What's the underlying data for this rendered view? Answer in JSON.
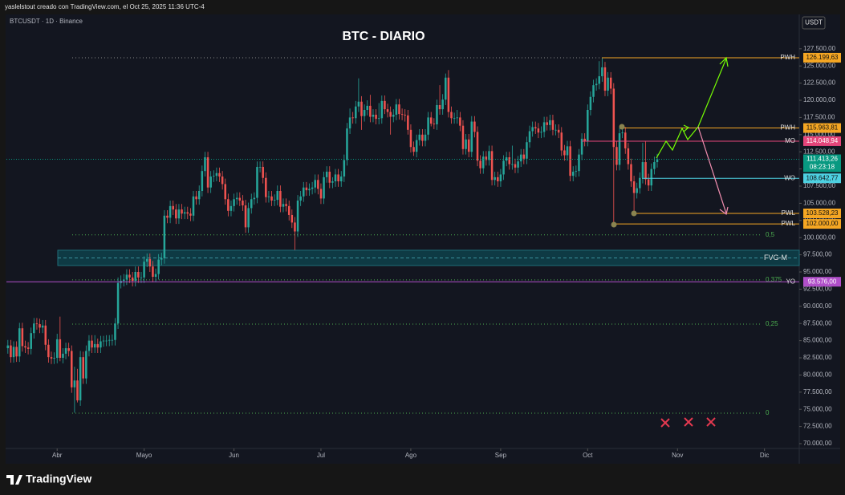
{
  "header": {
    "credit": "yaslelstout creado con TradingView.com, el Oct 25, 2025 11:36 UTC-4",
    "brand": "TradingView"
  },
  "chart_data": {
    "type": "candlestick",
    "title": "BTC - DIARIO",
    "symbol": "BTCUSDT · 1D · Binance",
    "currency": "USDT",
    "up_color": "#26a69a",
    "down_color": "#ef5350",
    "grid": false,
    "ylim": [
      67430,
      131100
    ],
    "xlim": [
      -0.5,
      273
    ],
    "yticks": [
      {
        "value": 127500,
        "label": "127.500,00"
      },
      {
        "value": 125000,
        "label": "125.000,00"
      },
      {
        "value": 122500,
        "label": "122.500,00"
      },
      {
        "value": 120000,
        "label": "120.000,00"
      },
      {
        "value": 117500,
        "label": "117.500,00"
      },
      {
        "value": 115000,
        "label": "115.000,00"
      },
      {
        "value": 112500,
        "label": "112.500,00"
      },
      {
        "value": 110000,
        "label": "110.000,00"
      },
      {
        "value": 107500,
        "label": "107.500,00"
      },
      {
        "value": 105000,
        "label": "105.000,00"
      },
      {
        "value": 102500,
        "label": "102.500,00"
      },
      {
        "value": 100000,
        "label": "100.000,00"
      },
      {
        "value": 97500,
        "label": "97.500,00"
      },
      {
        "value": 95000,
        "label": "95.000,00"
      },
      {
        "value": 92500,
        "label": "92.500,00"
      },
      {
        "value": 90000,
        "label": "90.000,00"
      },
      {
        "value": 87500,
        "label": "87.500,00"
      },
      {
        "value": 85000,
        "label": "85.000,00"
      },
      {
        "value": 82500,
        "label": "82.500,00"
      },
      {
        "value": 80000,
        "label": "80.000,00"
      },
      {
        "value": 77500,
        "label": "77.500,00"
      },
      {
        "value": 75000,
        "label": "75.000,00"
      },
      {
        "value": 72500,
        "label": "72.500,00"
      },
      {
        "value": 70000,
        "label": "70.000,00"
      }
    ],
    "xticks": [
      {
        "value": 17,
        "label": "Abr"
      },
      {
        "value": 47,
        "label": "Mayo"
      },
      {
        "value": 78,
        "label": "Jun"
      },
      {
        "value": 108,
        "label": "Jul"
      },
      {
        "value": 139,
        "label": "Ago"
      },
      {
        "value": 170,
        "label": "Sep"
      },
      {
        "value": 200,
        "label": "Oct"
      },
      {
        "value": 231,
        "label": "Nov"
      },
      {
        "value": 261,
        "label": "Dic"
      }
    ],
    "open": [
      83900,
      84300,
      82600,
      84100,
      82700,
      86800,
      84200,
      84000,
      83800,
      86100,
      87500,
      87400,
      86900,
      87200,
      84400,
      82600,
      82400,
      82500,
      85200,
      82500,
      83100,
      83900,
      83500,
      78200,
      79200,
      76300,
      82600,
      79500,
      83500,
      85000,
      84000,
      84500,
      84000,
      84900,
      85000,
      85000,
      85100,
      85100,
      87500,
      93400,
      93700,
      93900,
      94600,
      94200,
      93700,
      95000,
      94200,
      94200,
      96500,
      96900,
      95800,
      94300,
      94700,
      96800,
      97000,
      103200,
      102900,
      104600,
      104100,
      102800,
      104100,
      103500,
      103700,
      103500,
      103200,
      106000,
      105600,
      106800,
      109700,
      111700,
      107300,
      108900,
      109000,
      109400,
      108900,
      107800,
      105600,
      103900,
      104600,
      105600,
      105800,
      105400,
      104700,
      101500,
      104300,
      105600,
      105800,
      110300,
      110300,
      108700,
      105900,
      106000,
      105400,
      105500,
      106800,
      104500,
      104900,
      104600,
      103300,
      102200,
      100900,
      105400,
      106000,
      107300,
      106900,
      107100,
      107300,
      108400,
      107100,
      105700,
      108800,
      109600,
      108000,
      108200,
      109200,
      108200,
      108900,
      111300,
      115900,
      117500,
      117400,
      119100,
      119800,
      117700,
      118600,
      119200,
      117600,
      117900,
      117300,
      117400,
      119900,
      118700,
      118300,
      117600,
      117900,
      119400,
      118000,
      117900,
      117800,
      115700,
      113200,
      112500,
      114200,
      115000,
      114100,
      115000,
      117500,
      116600,
      116500,
      119300,
      118700,
      120100,
      123300,
      118300,
      117400,
      117400,
      117500,
      116300,
      112900,
      114300,
      112500,
      116900,
      115400,
      111200,
      110100,
      111800,
      111300,
      112600,
      108400,
      108800,
      108200,
      109200,
      111200,
      111700,
      110700,
      110700,
      110200,
      111100,
      112100,
      111500,
      113900,
      115500,
      116100,
      115900,
      115300,
      115400,
      116800,
      116400,
      117100,
      115700,
      115700,
      115300,
      112700,
      112000,
      113300,
      109000,
      109600,
      109700,
      112100,
      114400,
      114100,
      118600,
      120500,
      122200,
      122400,
      123500,
      124800,
      121400,
      123300,
      121700,
      113200,
      110600,
      115200,
      115300,
      113000,
      110700,
      108200,
      106500,
      107200,
      108700,
      111000,
      108500,
      107600,
      110000,
      111000
    ],
    "high": [
      85100,
      85100,
      84900,
      84900,
      87600,
      87600,
      85000,
      84800,
      86900,
      88300,
      88300,
      88200,
      88000,
      88000,
      85200,
      83400,
      83300,
      86000,
      88500,
      83900,
      84700,
      84700,
      84300,
      81200,
      80900,
      83500,
      83400,
      84300,
      85800,
      85800,
      85800,
      85300,
      85700,
      85700,
      85800,
      85800,
      85900,
      88300,
      94200,
      94500,
      94700,
      95400,
      95400,
      95000,
      95800,
      95800,
      95000,
      97300,
      97700,
      97700,
      96600,
      95500,
      97600,
      97800,
      104000,
      104000,
      105400,
      105400,
      104900,
      104900,
      104900,
      104500,
      104500,
      104300,
      106800,
      106800,
      107600,
      110500,
      112500,
      112500,
      109700,
      109800,
      110200,
      110200,
      109700,
      108600,
      106400,
      105400,
      106400,
      106600,
      106600,
      106200,
      105500,
      105100,
      106400,
      106600,
      111100,
      111100,
      111100,
      109500,
      106800,
      106800,
      106300,
      107600,
      107600,
      105700,
      105700,
      105400,
      104100,
      103000,
      106200,
      106800,
      108100,
      108100,
      107900,
      108100,
      109200,
      109200,
      107900,
      109600,
      110400,
      110400,
      108800,
      110000,
      110000,
      109700,
      112100,
      116700,
      118800,
      118300,
      119900,
      123200,
      120600,
      119400,
      120000,
      120800,
      118700,
      118700,
      119600,
      120700,
      120700,
      119500,
      119100,
      118700,
      120200,
      120200,
      118800,
      118700,
      118600,
      116500,
      114000,
      115000,
      115800,
      115800,
      115800,
      118300,
      118300,
      117400,
      120100,
      122200,
      120900,
      123900,
      124400,
      119100,
      118200,
      118600,
      118300,
      117100,
      115100,
      115100,
      117700,
      117700,
      116200,
      112000,
      112600,
      112600,
      113400,
      113400,
      109600,
      109600,
      110000,
      112000,
      112500,
      112500,
      113400,
      111500,
      111900,
      112900,
      112900,
      114700,
      116300,
      116900,
      116900,
      116700,
      116200,
      117600,
      117600,
      117900,
      117900,
      116500,
      116500,
      116100,
      113500,
      114100,
      114100,
      110400,
      110500,
      112900,
      115200,
      115200,
      119400,
      121300,
      123000,
      123200,
      125700,
      126200,
      125600,
      124100,
      124100,
      122500,
      114000,
      116000,
      116100,
      116100,
      113800,
      111500,
      109000,
      108000,
      109500,
      113800,
      114000,
      109300,
      110800,
      111800,
      112200
    ],
    "low": [
      83100,
      81800,
      81800,
      81900,
      81900,
      83400,
      83200,
      83000,
      83000,
      85300,
      86600,
      86100,
      86100,
      83600,
      81800,
      81600,
      81600,
      81700,
      82000,
      81700,
      82300,
      82700,
      77400,
      74500,
      76000,
      75500,
      78700,
      78700,
      82700,
      83200,
      83200,
      83200,
      83200,
      84100,
      84200,
      84200,
      84300,
      84300,
      86700,
      92600,
      92900,
      93100,
      93400,
      92900,
      92900,
      93400,
      93400,
      93400,
      95700,
      95000,
      93500,
      93500,
      93900,
      96000,
      96200,
      102100,
      102100,
      103300,
      102000,
      102000,
      102700,
      102700,
      102700,
      102400,
      102400,
      104800,
      104800,
      106000,
      108900,
      106500,
      106500,
      108100,
      108200,
      108100,
      107000,
      104800,
      103100,
      103100,
      103800,
      104800,
      104600,
      103900,
      100700,
      100700,
      103500,
      104800,
      105000,
      109500,
      107900,
      105100,
      105100,
      104600,
      104600,
      104700,
      103700,
      103700,
      103800,
      102500,
      101400,
      98200,
      100100,
      104600,
      105200,
      106100,
      106100,
      106300,
      106500,
      106300,
      104900,
      104900,
      108000,
      107200,
      107200,
      107400,
      107400,
      107400,
      108100,
      110500,
      115100,
      116600,
      116600,
      118300,
      115700,
      116900,
      117800,
      116800,
      116800,
      116500,
      116500,
      116600,
      118000,
      117500,
      115000,
      116800,
      117100,
      117200,
      117100,
      116900,
      115000,
      112400,
      111900,
      111700,
      113400,
      113300,
      113300,
      114200,
      116200,
      115800,
      115700,
      117900,
      117900,
      119300,
      117500,
      116600,
      116600,
      116600,
      115500,
      112100,
      112100,
      111700,
      111700,
      114600,
      110400,
      109300,
      109300,
      110500,
      110500,
      107600,
      107600,
      107400,
      107400,
      108400,
      110400,
      109900,
      109900,
      109400,
      109400,
      110300,
      110700,
      110700,
      113100,
      114700,
      115100,
      114500,
      114500,
      114600,
      115600,
      115600,
      114900,
      114900,
      114500,
      111900,
      111200,
      111200,
      108200,
      108200,
      108800,
      108900,
      111300,
      113300,
      113300,
      117800,
      119700,
      121400,
      121600,
      122700,
      120600,
      120600,
      120900,
      102000,
      109800,
      109800,
      114500,
      112200,
      109900,
      107400,
      103500,
      105700,
      106400,
      107900,
      107700,
      106800,
      106800,
      109200,
      110200
    ],
    "close": [
      84300,
      82600,
      84100,
      82700,
      86800,
      84200,
      84000,
      83800,
      86100,
      87500,
      87400,
      86900,
      87200,
      84400,
      82600,
      82400,
      82500,
      85200,
      82500,
      83100,
      83900,
      83500,
      78200,
      79200,
      76300,
      82600,
      79500,
      83500,
      85000,
      84000,
      84500,
      84000,
      84900,
      85000,
      85000,
      85100,
      85100,
      87500,
      93400,
      93700,
      93900,
      94600,
      94200,
      93700,
      95000,
      94200,
      94200,
      96500,
      96900,
      95800,
      94300,
      94700,
      96800,
      97000,
      103200,
      102900,
      104600,
      104100,
      102800,
      104100,
      103500,
      103700,
      103500,
      103200,
      106000,
      105600,
      106800,
      109700,
      111700,
      107300,
      108900,
      109000,
      109400,
      108900,
      107800,
      105600,
      103900,
      104600,
      105600,
      105800,
      105400,
      104700,
      101500,
      104300,
      105600,
      105800,
      110300,
      110300,
      108700,
      105900,
      106000,
      105400,
      105500,
      106800,
      104500,
      104900,
      104600,
      103300,
      102200,
      100900,
      105400,
      106000,
      107300,
      106900,
      107100,
      107300,
      108400,
      107100,
      105700,
      108800,
      109600,
      108000,
      108200,
      109200,
      108200,
      108900,
      111300,
      115900,
      117500,
      117400,
      119100,
      119800,
      117700,
      118600,
      119200,
      117600,
      117900,
      117300,
      117400,
      119900,
      118700,
      118300,
      117600,
      117900,
      119400,
      118000,
      117900,
      117800,
      115700,
      113200,
      112500,
      114200,
      115000,
      114100,
      115000,
      117500,
      116600,
      116500,
      119300,
      118700,
      120100,
      123300,
      118300,
      117400,
      117400,
      117500,
      116300,
      112900,
      114300,
      112500,
      116900,
      115400,
      111200,
      110100,
      111800,
      111300,
      112600,
      108400,
      108800,
      108200,
      109200,
      111200,
      111700,
      110700,
      110700,
      110200,
      111100,
      112100,
      111500,
      113900,
      115500,
      116100,
      115900,
      115300,
      115400,
      116800,
      116400,
      117100,
      115700,
      115700,
      115300,
      112700,
      112000,
      113300,
      109000,
      109600,
      109700,
      112100,
      114400,
      114100,
      118600,
      120500,
      122200,
      122400,
      123500,
      124800,
      121400,
      123300,
      121700,
      113200,
      110600,
      115200,
      115300,
      113000,
      110700,
      108200,
      106500,
      107200,
      108700,
      111000,
      108500,
      107600,
      110000,
      111000,
      111413.26
    ],
    "last_price": {
      "value": 111413.26,
      "label": "111.413,26",
      "countdown": "08:23:18",
      "color": "#089981"
    },
    "levels": [
      {
        "name": "PWH",
        "value": 126199.63,
        "label": "126.199,63",
        "color": "#f5a623"
      },
      {
        "name": "PWH",
        "value": 115963.81,
        "label": "115.963,81",
        "color": "#f5a623"
      },
      {
        "name": "MO",
        "value": 114048.94,
        "label": "114.048,94",
        "color": "#e5457a"
      },
      {
        "name": "WO",
        "value": 108642.77,
        "label": "108.642,77",
        "color": "#4dd0e1"
      },
      {
        "name": "PWL",
        "value": 103528.23,
        "label": "103.528,23",
        "color": "#f5a623"
      },
      {
        "name": "PWL",
        "value": 102000.0,
        "label": "102.000,00",
        "color": "#f5a623"
      },
      {
        "name": "YO",
        "value": 93576.0,
        "label": "93.576,00",
        "color": "#b04fc9"
      }
    ],
    "fib": [
      {
        "label": "0,5",
        "value": 100400
      },
      {
        "label": "0,375",
        "value": 93840
      },
      {
        "label": "0,25",
        "value": 87410
      },
      {
        "label": "0",
        "value": 74440
      }
    ],
    "zone": {
      "label": "FVG-M",
      "top": 98165,
      "bottom": 95940
    }
  }
}
